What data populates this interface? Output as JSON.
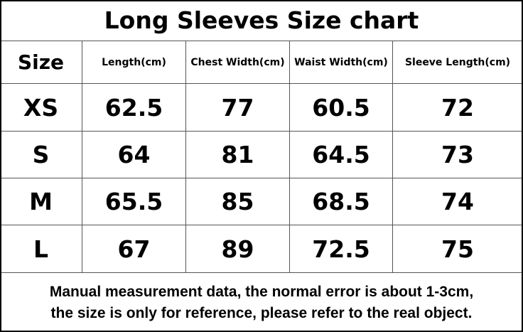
{
  "title": "Long Sleeves Size chart",
  "table": {
    "header": [
      "Size",
      "Length(cm)",
      "Chest Width(cm)",
      "Waist Width(cm)",
      "Sleeve Length(cm)"
    ],
    "rows": [
      [
        "XS",
        "62.5",
        "77",
        "60.5",
        "72"
      ],
      [
        "S",
        "64",
        "81",
        "64.5",
        "73"
      ],
      [
        "M",
        "65.5",
        "85",
        "68.5",
        "74"
      ],
      [
        "L",
        "67",
        "89",
        "72.5",
        "75"
      ]
    ]
  },
  "note": [
    "Manual measurement data, the normal error is about 1-3cm,",
    "the size is only for reference, please refer to the real object."
  ]
}
